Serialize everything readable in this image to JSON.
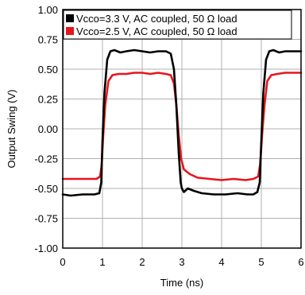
{
  "chart_data": {
    "type": "line",
    "xlabel": "Time (ns)",
    "ylabel": "Output Swing (V)",
    "xlim": [
      0,
      6
    ],
    "ylim": [
      -1.0,
      1.0
    ],
    "x_ticks": [
      "0",
      "1",
      "2",
      "3",
      "4",
      "5",
      "6"
    ],
    "y_ticks": [
      "1.00",
      "0.75",
      "0.50",
      "0.25",
      "0.00",
      "-0.25",
      "-0.50",
      "-0.75",
      "-1.00"
    ],
    "grid": true,
    "legend_position": "top-right",
    "series": [
      {
        "name": "Vcco=3.3 V, AC coupled, 50 Ω load",
        "color": "#000000",
        "x": [
          0,
          0.2,
          0.5,
          0.8,
          0.92,
          0.97,
          1.0,
          1.05,
          1.12,
          1.2,
          1.3,
          1.45,
          1.6,
          1.8,
          2.0,
          2.2,
          2.4,
          2.6,
          2.72,
          2.8,
          2.86,
          2.92,
          2.97,
          3.0,
          3.05,
          3.15,
          3.3,
          3.5,
          3.8,
          4.1,
          4.4,
          4.65,
          4.8,
          4.9,
          4.96,
          5.0,
          5.05,
          5.12,
          5.2,
          5.3,
          5.45,
          5.6,
          5.8,
          6.0
        ],
        "y": [
          -0.55,
          -0.56,
          -0.55,
          -0.55,
          -0.54,
          -0.45,
          -0.1,
          0.3,
          0.58,
          0.65,
          0.66,
          0.64,
          0.65,
          0.66,
          0.65,
          0.64,
          0.65,
          0.65,
          0.63,
          0.5,
          0.2,
          -0.2,
          -0.45,
          -0.5,
          -0.53,
          -0.5,
          -0.52,
          -0.54,
          -0.55,
          -0.55,
          -0.54,
          -0.55,
          -0.55,
          -0.53,
          -0.45,
          -0.1,
          0.3,
          0.58,
          0.65,
          0.66,
          0.64,
          0.65,
          0.65,
          0.65
        ]
      },
      {
        "name": "Vcco=2.5 V, AC coupled, 50 Ω load",
        "color": "#e8141c",
        "x": [
          0,
          0.3,
          0.6,
          0.85,
          0.94,
          0.98,
          1.02,
          1.07,
          1.15,
          1.25,
          1.4,
          1.6,
          1.8,
          2.0,
          2.2,
          2.4,
          2.6,
          2.72,
          2.8,
          2.86,
          2.92,
          2.98,
          3.05,
          3.2,
          3.4,
          3.7,
          4.0,
          4.3,
          4.6,
          4.8,
          4.92,
          4.97,
          5.02,
          5.08,
          5.15,
          5.25,
          5.4,
          5.6,
          5.8,
          6.0
        ],
        "y": [
          -0.42,
          -0.42,
          -0.42,
          -0.42,
          -0.4,
          -0.3,
          -0.05,
          0.2,
          0.4,
          0.45,
          0.46,
          0.46,
          0.47,
          0.47,
          0.46,
          0.47,
          0.46,
          0.45,
          0.38,
          0.2,
          -0.05,
          -0.25,
          -0.34,
          -0.38,
          -0.41,
          -0.42,
          -0.43,
          -0.42,
          -0.43,
          -0.42,
          -0.4,
          -0.3,
          -0.05,
          0.2,
          0.4,
          0.45,
          0.46,
          0.47,
          0.47,
          0.47
        ]
      }
    ]
  }
}
